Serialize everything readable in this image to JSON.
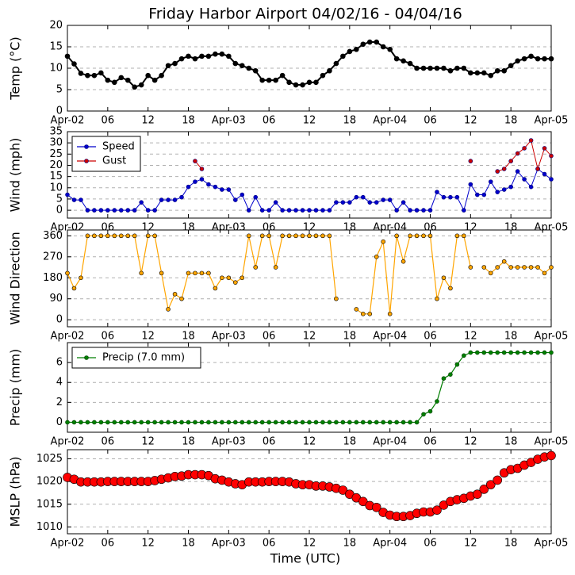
{
  "chart_data": [
    {
      "type": "line",
      "title": "Friday Harbor Airport 04/02/16 - 04/04/16",
      "ylabel": "Temp (°C)",
      "x": [
        0,
        1,
        2,
        3,
        4,
        5,
        6,
        7,
        8,
        9,
        10,
        11,
        12,
        13,
        14,
        15,
        16,
        17,
        18,
        19,
        20,
        21,
        22,
        23,
        24,
        25,
        26,
        27,
        28,
        29,
        30,
        31,
        32,
        33,
        34,
        35,
        36,
        37,
        38,
        39,
        40,
        41,
        42,
        43,
        44,
        45,
        46,
        47,
        48,
        49,
        50,
        51,
        52,
        53,
        54,
        55,
        56,
        57,
        58,
        59,
        60,
        61,
        62,
        63,
        64,
        65,
        66,
        67,
        68,
        69,
        70,
        71,
        72
      ],
      "values": [
        12.8,
        11,
        8.8,
        8.3,
        8.3,
        8.9,
        7.2,
        6.7,
        7.8,
        7.2,
        5.6,
        6.1,
        8.3,
        7.2,
        8.3,
        10.6,
        11.1,
        12.2,
        12.8,
        12.2,
        12.8,
        12.8,
        13.3,
        13.3,
        12.8,
        11.1,
        10.6,
        10,
        9.4,
        7.2,
        7.2,
        7.2,
        8.3,
        6.7,
        6.1,
        6.1,
        6.7,
        6.7,
        8.3,
        9.4,
        11.1,
        12.8,
        13.9,
        14.4,
        15.6,
        16.1,
        16.1,
        15,
        14.4,
        12.2,
        11.7,
        11.1,
        10,
        10,
        10,
        10,
        10,
        9.4,
        10,
        10,
        8.9,
        8.9,
        8.9,
        8.3,
        9.4,
        9.4,
        10.6,
        11.7,
        12.2,
        12.8,
        12.2,
        12.2,
        12.2
      ],
      "color": "#000000",
      "xlim": [
        0,
        72
      ],
      "ylim": [
        0,
        20
      ],
      "yticks": [
        0,
        5,
        10,
        15,
        20
      ],
      "xticks": [
        {
          "value": 0,
          "label": "Apr-02"
        },
        {
          "value": 6,
          "label": "06"
        },
        12,
        18,
        {
          "value": 24,
          "label": "Apr-03"
        },
        {
          "value": 30,
          "label": "06"
        },
        {
          "value": 36,
          "label": "12"
        },
        {
          "value": 42,
          "label": "18"
        },
        {
          "value": 48,
          "label": "Apr-04"
        },
        {
          "value": 54,
          "label": "06"
        },
        {
          "value": 60,
          "label": "12"
        },
        {
          "value": 66,
          "label": "18"
        },
        {
          "value": 72,
          "label": "Apr-05"
        }
      ],
      "grid": true
    },
    {
      "type": "line",
      "ylabel": "Wind (mph)",
      "legend": "upper left",
      "x": [
        0,
        1,
        2,
        3,
        4,
        5,
        6,
        7,
        8,
        9,
        10,
        11,
        12,
        13,
        14,
        15,
        16,
        17,
        18,
        19,
        20,
        21,
        22,
        23,
        24,
        25,
        26,
        27,
        28,
        29,
        30,
        31,
        32,
        33,
        34,
        35,
        36,
        37,
        38,
        39,
        40,
        41,
        42,
        43,
        44,
        45,
        46,
        47,
        48,
        49,
        50,
        51,
        52,
        53,
        54,
        55,
        56,
        57,
        58,
        59,
        60,
        61,
        62,
        63,
        64,
        65,
        66,
        67,
        68,
        69,
        70,
        71,
        72
      ],
      "series": [
        {
          "name": "Speed",
          "color": "#0000cc",
          "values": [
            6.9,
            4.6,
            4.6,
            0,
            0,
            0,
            0,
            0,
            0,
            0,
            0,
            3.5,
            0,
            0,
            4.6,
            4.6,
            4.6,
            5.8,
            10.4,
            12.7,
            13.8,
            11.5,
            10.4,
            9.2,
            9.2,
            4.6,
            6.9,
            0,
            5.8,
            0,
            0,
            3.5,
            0,
            0,
            0,
            0,
            0,
            0,
            0,
            0,
            3.5,
            3.5,
            3.5,
            5.8,
            5.8,
            3.5,
            3.5,
            4.6,
            4.6,
            0,
            3.5,
            0,
            0,
            0,
            0,
            8.1,
            5.8,
            5.8,
            5.8,
            0,
            11.5,
            6.9,
            6.9,
            12.7,
            8.1,
            9.2,
            10.4,
            17.3,
            13.8,
            10.4,
            18.4,
            16.1,
            13.8
          ]
        },
        {
          "name": "Gust",
          "color": "#cc0000",
          "values": [
            null,
            null,
            null,
            null,
            null,
            null,
            null,
            null,
            null,
            null,
            null,
            null,
            null,
            null,
            null,
            null,
            null,
            null,
            null,
            21.9,
            18.4,
            null,
            null,
            null,
            null,
            null,
            null,
            null,
            null,
            null,
            null,
            null,
            null,
            null,
            null,
            null,
            null,
            null,
            null,
            null,
            null,
            null,
            null,
            null,
            null,
            null,
            null,
            null,
            null,
            null,
            null,
            null,
            null,
            null,
            null,
            null,
            null,
            null,
            null,
            null,
            21.9,
            null,
            null,
            null,
            17.3,
            18.4,
            21.9,
            25.3,
            27.6,
            31.1,
            18.4,
            27.6,
            24.2
          ]
        }
      ],
      "xlim": [
        0,
        72
      ],
      "ylim": [
        -3.5,
        35
      ],
      "yticks": [
        0,
        5,
        10,
        15,
        20,
        25,
        30,
        35
      ],
      "xticks": [
        {
          "value": 0,
          "label": "Apr-02"
        },
        {
          "value": 6,
          "label": "06"
        },
        12,
        18,
        {
          "value": 24,
          "label": "Apr-03"
        },
        {
          "value": 30,
          "label": "06"
        },
        {
          "value": 36,
          "label": "12"
        },
        {
          "value": 42,
          "label": "18"
        },
        {
          "value": 48,
          "label": "Apr-04"
        },
        {
          "value": 54,
          "label": "06"
        },
        {
          "value": 60,
          "label": "12"
        },
        {
          "value": 66,
          "label": "18"
        },
        {
          "value": 72,
          "label": "Apr-05"
        }
      ],
      "grid": true
    },
    {
      "type": "line",
      "ylabel": "Wind Direction",
      "x": [
        0,
        1,
        2,
        3,
        4,
        5,
        6,
        7,
        8,
        9,
        10,
        11,
        12,
        13,
        14,
        15,
        16,
        17,
        18,
        19,
        20,
        21,
        22,
        23,
        24,
        25,
        26,
        27,
        28,
        29,
        30,
        31,
        32,
        33,
        34,
        35,
        36,
        37,
        38,
        39,
        40,
        41,
        42,
        43,
        44,
        45,
        46,
        47,
        48,
        49,
        50,
        51,
        52,
        53,
        54,
        55,
        56,
        57,
        58,
        59,
        60,
        61,
        62,
        63,
        64,
        65,
        66,
        67,
        68,
        69,
        70,
        71,
        72
      ],
      "values": [
        200,
        135,
        180,
        360,
        360,
        360,
        360,
        360,
        360,
        360,
        360,
        200,
        360,
        360,
        200,
        45,
        110,
        90,
        200,
        200,
        200,
        200,
        135,
        180,
        180,
        160,
        180,
        360,
        225,
        360,
        360,
        225,
        360,
        360,
        360,
        360,
        360,
        360,
        360,
        360,
        90,
        null,
        null,
        45,
        25,
        25,
        270,
        335,
        25,
        360,
        250,
        360,
        360,
        360,
        360,
        90,
        180,
        135,
        360,
        360,
        225,
        null,
        225,
        200,
        225,
        250,
        225,
        225,
        225,
        225,
        225,
        200,
        225
      ],
      "color": "#ffa500",
      "xlim": [
        0,
        72
      ],
      "ylim": [
        -30,
        385
      ],
      "yticks": [
        0,
        90,
        180,
        270,
        360
      ],
      "xticks": [
        {
          "value": 0,
          "label": "Apr-02"
        },
        {
          "value": 6,
          "label": "06"
        },
        12,
        18,
        {
          "value": 24,
          "label": "Apr-03"
        },
        {
          "value": 30,
          "label": "06"
        },
        {
          "value": 36,
          "label": "12"
        },
        {
          "value": 42,
          "label": "18"
        },
        {
          "value": 48,
          "label": "Apr-04"
        },
        {
          "value": 54,
          "label": "06"
        },
        {
          "value": 60,
          "label": "12"
        },
        {
          "value": 66,
          "label": "18"
        },
        {
          "value": 72,
          "label": "Apr-05"
        }
      ],
      "grid": true
    },
    {
      "type": "line",
      "ylabel": "Precip (mm)",
      "legend": "upper left",
      "x": [
        0,
        1,
        2,
        3,
        4,
        5,
        6,
        7,
        8,
        9,
        10,
        11,
        12,
        13,
        14,
        15,
        16,
        17,
        18,
        19,
        20,
        21,
        22,
        23,
        24,
        25,
        26,
        27,
        28,
        29,
        30,
        31,
        32,
        33,
        34,
        35,
        36,
        37,
        38,
        39,
        40,
        41,
        42,
        43,
        44,
        45,
        46,
        47,
        48,
        49,
        50,
        51,
        52,
        53,
        54,
        55,
        56,
        57,
        58,
        59,
        60,
        61,
        62,
        63,
        64,
        65,
        66,
        67,
        68,
        69,
        70,
        71,
        72
      ],
      "series": [
        {
          "name": "Precip (7.0 mm)",
          "color": "#007f00",
          "values": [
            0,
            0,
            0,
            0,
            0,
            0,
            0,
            0,
            0,
            0,
            0,
            0,
            0,
            0,
            0,
            0,
            0,
            0,
            0,
            0,
            0,
            0,
            0,
            0,
            0,
            0,
            0,
            0,
            0,
            0,
            0,
            0,
            0,
            0,
            0,
            0,
            0,
            0,
            0,
            0,
            0,
            0,
            0,
            0,
            0,
            0,
            0,
            0,
            0,
            0,
            0,
            0,
            0,
            0.8,
            1.1,
            2.1,
            4.4,
            4.8,
            5.8,
            6.7,
            7.0,
            7.0,
            7.0,
            7.0,
            7.0,
            7.0,
            7.0,
            7.0,
            7.0,
            7.0,
            7.0,
            7.0,
            7.0
          ]
        }
      ],
      "xlim": [
        0,
        72
      ],
      "ylim": [
        -1,
        8
      ],
      "yticks": [
        0,
        2,
        4,
        6
      ],
      "xticks": [
        {
          "value": 0,
          "label": "Apr-02"
        },
        {
          "value": 6,
          "label": "06"
        },
        12,
        18,
        {
          "value": 24,
          "label": "Apr-03"
        },
        {
          "value": 30,
          "label": "06"
        },
        {
          "value": 36,
          "label": "12"
        },
        {
          "value": 42,
          "label": "18"
        },
        {
          "value": 48,
          "label": "Apr-04"
        },
        {
          "value": 54,
          "label": "06"
        },
        {
          "value": 60,
          "label": "12"
        },
        {
          "value": 66,
          "label": "18"
        },
        {
          "value": 72,
          "label": "Apr-05"
        }
      ],
      "grid": true
    },
    {
      "type": "scatter",
      "ylabel": "MSLP (hPa)",
      "xlabel": "Time (UTC)",
      "x": [
        0,
        1,
        2,
        3,
        4,
        5,
        6,
        7,
        8,
        9,
        10,
        11,
        12,
        13,
        14,
        15,
        16,
        17,
        18,
        19,
        20,
        21,
        22,
        23,
        24,
        25,
        26,
        27,
        28,
        29,
        30,
        31,
        32,
        33,
        34,
        35,
        36,
        37,
        38,
        39,
        40,
        41,
        42,
        43,
        44,
        45,
        46,
        47,
        48,
        49,
        50,
        51,
        52,
        53,
        54,
        55,
        56,
        57,
        58,
        59,
        60,
        61,
        62,
        63,
        64,
        65,
        66,
        67,
        68,
        69,
        70,
        71,
        72
      ],
      "values": [
        1020.9,
        1020.5,
        1019.9,
        1019.9,
        1019.9,
        1019.9,
        1020,
        1020,
        1020,
        1020,
        1020,
        1020,
        1020,
        1020.2,
        1020.5,
        1020.8,
        1021.1,
        1021.2,
        1021.5,
        1021.5,
        1021.5,
        1021.3,
        1020.6,
        1020.3,
        1019.9,
        1019.5,
        1019.3,
        1019.9,
        1019.9,
        1019.9,
        1020,
        1020,
        1020,
        1019.9,
        1019.5,
        1019.3,
        1019.3,
        1019,
        1019,
        1018.8,
        1018.5,
        1018.1,
        1017.2,
        1016.4,
        1015.6,
        1014.7,
        1014.3,
        1013.2,
        1012.6,
        1012.3,
        1012.3,
        1012.5,
        1013,
        1013.3,
        1013.3,
        1013.7,
        1014.8,
        1015.6,
        1016,
        1016.3,
        1016.8,
        1017.2,
        1018.3,
        1019.3,
        1020.3,
        1021.9,
        1022.6,
        1022.9,
        1023.6,
        1024.2,
        1024.9,
        1025.4,
        1025.7
      ],
      "color": "#ff0000",
      "xlim": [
        0,
        72
      ],
      "ylim": [
        1008.5,
        1027
      ],
      "yticks": [
        1010,
        1015,
        1020,
        1025
      ],
      "xticks": [
        {
          "value": 0,
          "label": "Apr-02"
        },
        {
          "value": 6,
          "label": "06"
        },
        12,
        18,
        {
          "value": 24,
          "label": "Apr-03"
        },
        {
          "value": 30,
          "label": "06"
        },
        {
          "value": 36,
          "label": "12"
        },
        {
          "value": 42,
          "label": "18"
        },
        {
          "value": 48,
          "label": "Apr-04"
        },
        {
          "value": 54,
          "label": "06"
        },
        {
          "value": 60,
          "label": "12"
        },
        {
          "value": 66,
          "label": "18"
        },
        {
          "value": 72,
          "label": "Apr-05"
        }
      ],
      "grid": true
    }
  ]
}
